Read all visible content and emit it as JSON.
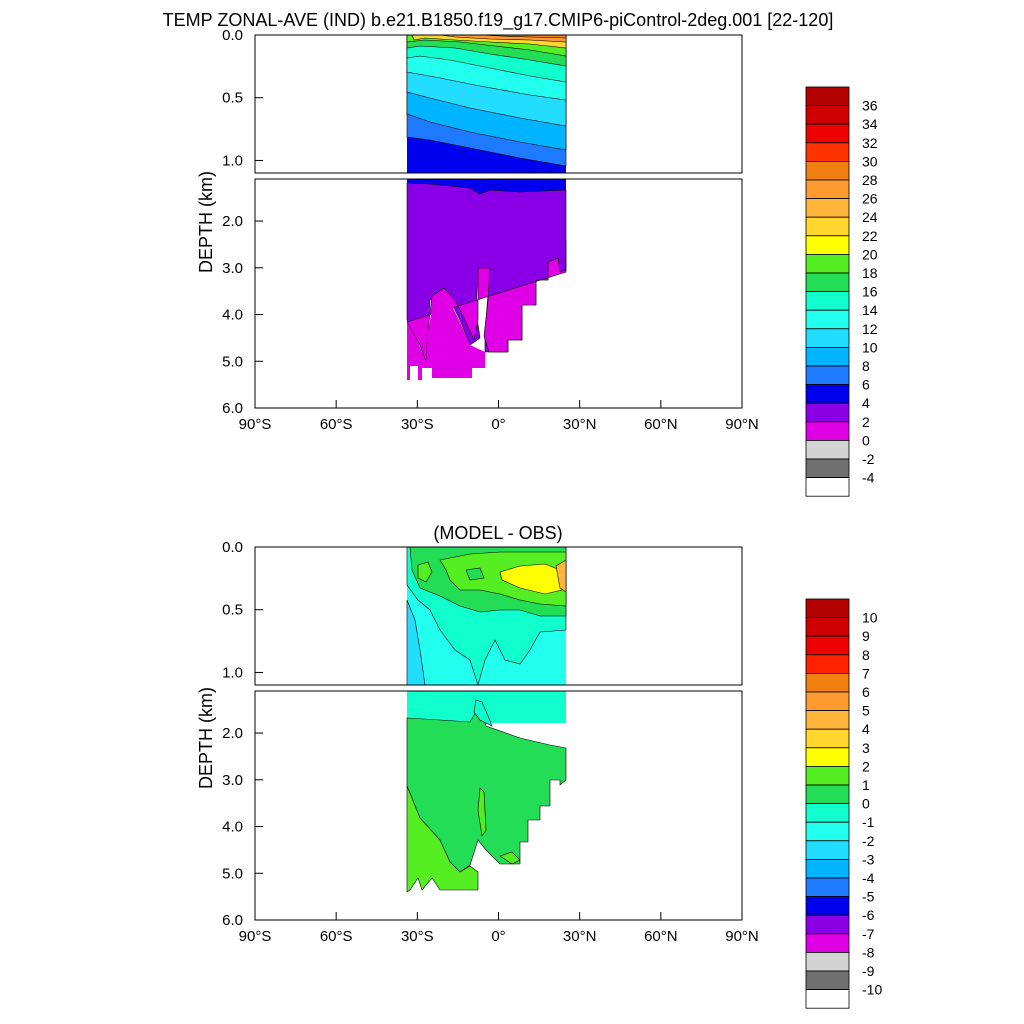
{
  "chart_data": [
    {
      "type": "heatmap",
      "title": "TEMP ZONAL-AVE (IND) b.e21.B1850.f19_g17.CMIP6-piControl-2deg.001 [22-120]",
      "ylabel": "DEPTH (km)",
      "x_ticks": [
        "90°S",
        "60°S",
        "30°S",
        "0°",
        "30°N",
        "60°N",
        "90°N"
      ],
      "xlim": [
        -90,
        90
      ],
      "upper_ylim": [
        0.0,
        1.1
      ],
      "upper_yticks": [
        "0.0",
        "0.5",
        "1.0"
      ],
      "lower_ylim": [
        1.1,
        6.0
      ],
      "lower_yticks": [
        "2.0",
        "3.0",
        "4.0",
        "5.0",
        "6.0"
      ],
      "colorbar": {
        "labels": [
          "36",
          "34",
          "32",
          "30",
          "28",
          "26",
          "24",
          "22",
          "20",
          "18",
          "16",
          "14",
          "12",
          "10",
          "8",
          "6",
          "4",
          "2",
          "0",
          "-2",
          "-4"
        ],
        "colors": [
          "#b30000",
          "#d10000",
          "#ee0000",
          "#ff3300",
          "#f08010",
          "#ff9a2e",
          "#ffb43c",
          "#ffd62e",
          "#ffff00",
          "#55ee22",
          "#22dd55",
          "#11ffcc",
          "#22ffee",
          "#22ddff",
          "#00b4ff",
          "#1e7aff",
          "#0000ee",
          "#8a00e6",
          "#e000e6",
          "#d3d3d3",
          "#707070",
          "#ffffff"
        ]
      }
    },
    {
      "type": "heatmap",
      "title": "(MODEL - OBS)",
      "ylabel": "DEPTH (km)",
      "x_ticks": [
        "90°S",
        "60°S",
        "30°S",
        "0°",
        "30°N",
        "60°N",
        "90°N"
      ],
      "xlim": [
        -90,
        90
      ],
      "upper_ylim": [
        0.0,
        1.1
      ],
      "upper_yticks": [
        "0.0",
        "0.5",
        "1.0"
      ],
      "lower_ylim": [
        1.1,
        6.0
      ],
      "lower_yticks": [
        "2.0",
        "3.0",
        "4.0",
        "5.0",
        "6.0"
      ],
      "colorbar": {
        "labels": [
          "10",
          "9",
          "8",
          "7",
          "6",
          "5",
          "4",
          "3",
          "2",
          "1",
          "0",
          "-1",
          "-2",
          "-3",
          "-4",
          "-5",
          "-6",
          "-7",
          "-8",
          "-9",
          "-10"
        ],
        "colors": [
          "#b30000",
          "#d10000",
          "#ee0000",
          "#ff2200",
          "#f08010",
          "#ff9a2e",
          "#ffb43c",
          "#ffd62e",
          "#ffff00",
          "#55ee22",
          "#22dd55",
          "#11ffcc",
          "#22ffee",
          "#22ddff",
          "#00b4ff",
          "#1e7aff",
          "#0000ee",
          "#8a00e6",
          "#e000e6",
          "#d3d3d3",
          "#707070",
          "#ffffff"
        ]
      }
    }
  ]
}
